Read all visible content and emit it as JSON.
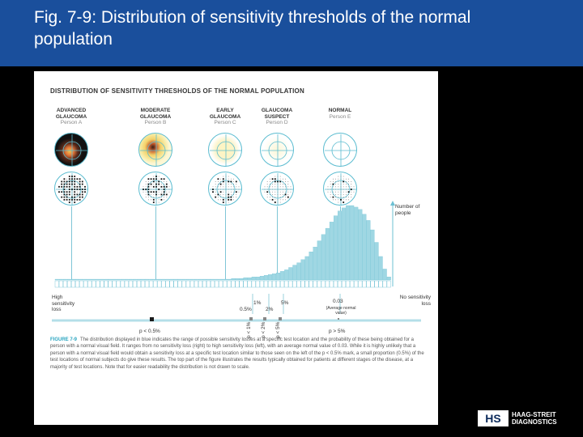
{
  "slide": {
    "title": "Fig. 7-9: Distribution of sensitivity thresholds of the normal population"
  },
  "figure": {
    "heading": "DISTRIBUTION OF SENSITIVITY THRESHOLDS OF THE NORMAL POPULATION",
    "stages": [
      {
        "name": "ADVANCED GLAUCOMA",
        "person": "Person A"
      },
      {
        "name": "MODERATE GLAUCOMA",
        "person": "Person B"
      },
      {
        "name": "EARLY GLAUCOMA",
        "person": "Person C"
      },
      {
        "name": "GLAUCOMA SUSPECT",
        "person": "Person D"
      },
      {
        "name": "NORMAL",
        "person": "Person E"
      }
    ],
    "y_label": "Number of people",
    "left_label": "High sensitivity loss",
    "right_label": "No sensitivity loss",
    "pct_1": "1%",
    "pct_05": "0.5%",
    "pct_2": "2%",
    "pct_5": "5%",
    "mean_value": "0.03",
    "mean_note": "(Average normal value)",
    "p_lt_05": "p < 0.5%",
    "p_lt_1": "p < 1%",
    "p_lt_2": "p < 2%",
    "p_lt_5": "p < 5%",
    "p_gt_5": "p > 5%",
    "caption_label": "FIGURE 7-9",
    "caption_text": "The distribution displayed in blue indicates the range of possible sensitivity losses at a specific test location and the probability of these being obtained for a person with a normal visual field. It ranges from no sensitivity loss (right) to high sensitivity loss (left), with an average normal value of 0.03. While it is highly unlikely that a person with a normal visual field would obtain a sensitivity loss at a specific test location similar to those seen on the left of the p < 0.5% mark, a small proportion (0.5%) of the test locations of normal subjects do give these results. The top part of the figure illustrates the results typically obtained for patients at different stages of the disease, at a majority of test locations. Note that for easier readability the distribution is not drawn to scale."
  },
  "chart_data": {
    "type": "bar",
    "xlabel": "",
    "ylabel": "Number of people",
    "values": [
      1,
      1,
      1,
      1,
      1,
      1,
      1,
      1,
      1,
      1,
      1,
      1,
      1,
      1,
      1,
      1,
      1,
      1,
      1,
      1,
      1,
      1,
      1,
      1,
      1,
      1,
      1,
      1,
      1,
      1,
      1,
      1,
      1,
      1,
      1,
      1,
      1,
      1,
      1,
      1,
      1,
      1,
      1,
      2,
      2,
      2,
      3,
      3,
      4,
      4,
      5,
      6,
      7,
      8,
      9,
      11,
      13,
      16,
      19,
      22,
      26,
      30,
      36,
      42,
      50,
      58,
      66,
      74,
      82,
      88,
      92,
      95,
      95,
      93,
      90,
      84,
      76,
      64,
      48,
      30,
      14,
      4
    ],
    "colors": {
      "bar": "#9fd7e3",
      "bar_edge": "#6cc0d3",
      "axis": "#6cc0d3",
      "marker": "#1a1a1a"
    }
  },
  "logo": {
    "mark": "HS",
    "line1": "HAAG-STREIT",
    "line2": "DIAGNOSTICS"
  }
}
